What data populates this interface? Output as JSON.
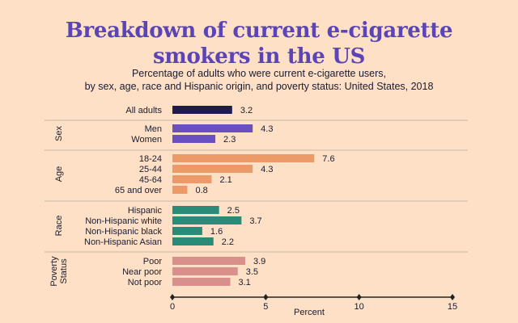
{
  "title_line1": "Breakdown of current e-cigarette",
  "title_line2": "smokers in the US",
  "subtitle_line1": "Percentage of adults who were current e-cigarette users,",
  "subtitle_line2": "by sex, age, race and Hispanic origin, and poverty status: United States, 2018",
  "chart_data": {
    "type": "bar",
    "orientation": "horizontal",
    "xlabel": "Percent",
    "xlim": [
      0,
      15
    ],
    "xticks": [
      0,
      5,
      10,
      15
    ],
    "groups": [
      {
        "name": "",
        "color": "#1f1b4d",
        "categories": [
          "All adults"
        ],
        "values": [
          3.2
        ],
        "labels": [
          "3.2"
        ]
      },
      {
        "name": "Sex",
        "color": "#6a4fc1",
        "categories": [
          "Men",
          "Women"
        ],
        "values": [
          4.3,
          2.3
        ],
        "labels": [
          "4.3",
          "2.3"
        ]
      },
      {
        "name": "Age",
        "color": "#ec9a67",
        "categories": [
          "18-24",
          "25-44",
          "45-64",
          "65 and over"
        ],
        "values": [
          7.6,
          4.3,
          2.1,
          0.8
        ],
        "labels": [
          "7.6",
          "4.3",
          "2.1",
          "0.8"
        ]
      },
      {
        "name": "Race",
        "color": "#2a8c78",
        "categories": [
          "Hispanic",
          "Non-Hispanic white",
          "Non-Hispanic black",
          "Non-Hispanic Asian"
        ],
        "values": [
          2.5,
          3.7,
          1.6,
          2.2
        ],
        "labels": [
          "2.5",
          "3.7",
          "1.6",
          "2.2"
        ]
      },
      {
        "name": "Poverty Status",
        "name_lines": [
          "Poverty",
          "Status"
        ],
        "color": "#d98f8b",
        "categories": [
          "Poor",
          "Near poor",
          "Not poor"
        ],
        "values": [
          3.9,
          3.5,
          3.1
        ],
        "labels": [
          "3.9",
          "3.5",
          "3.1"
        ]
      }
    ],
    "colors": {
      "background": "#fde0c5",
      "title": "#5b45b6",
      "axis": "#222222",
      "divider": "#c9b7a6"
    }
  }
}
